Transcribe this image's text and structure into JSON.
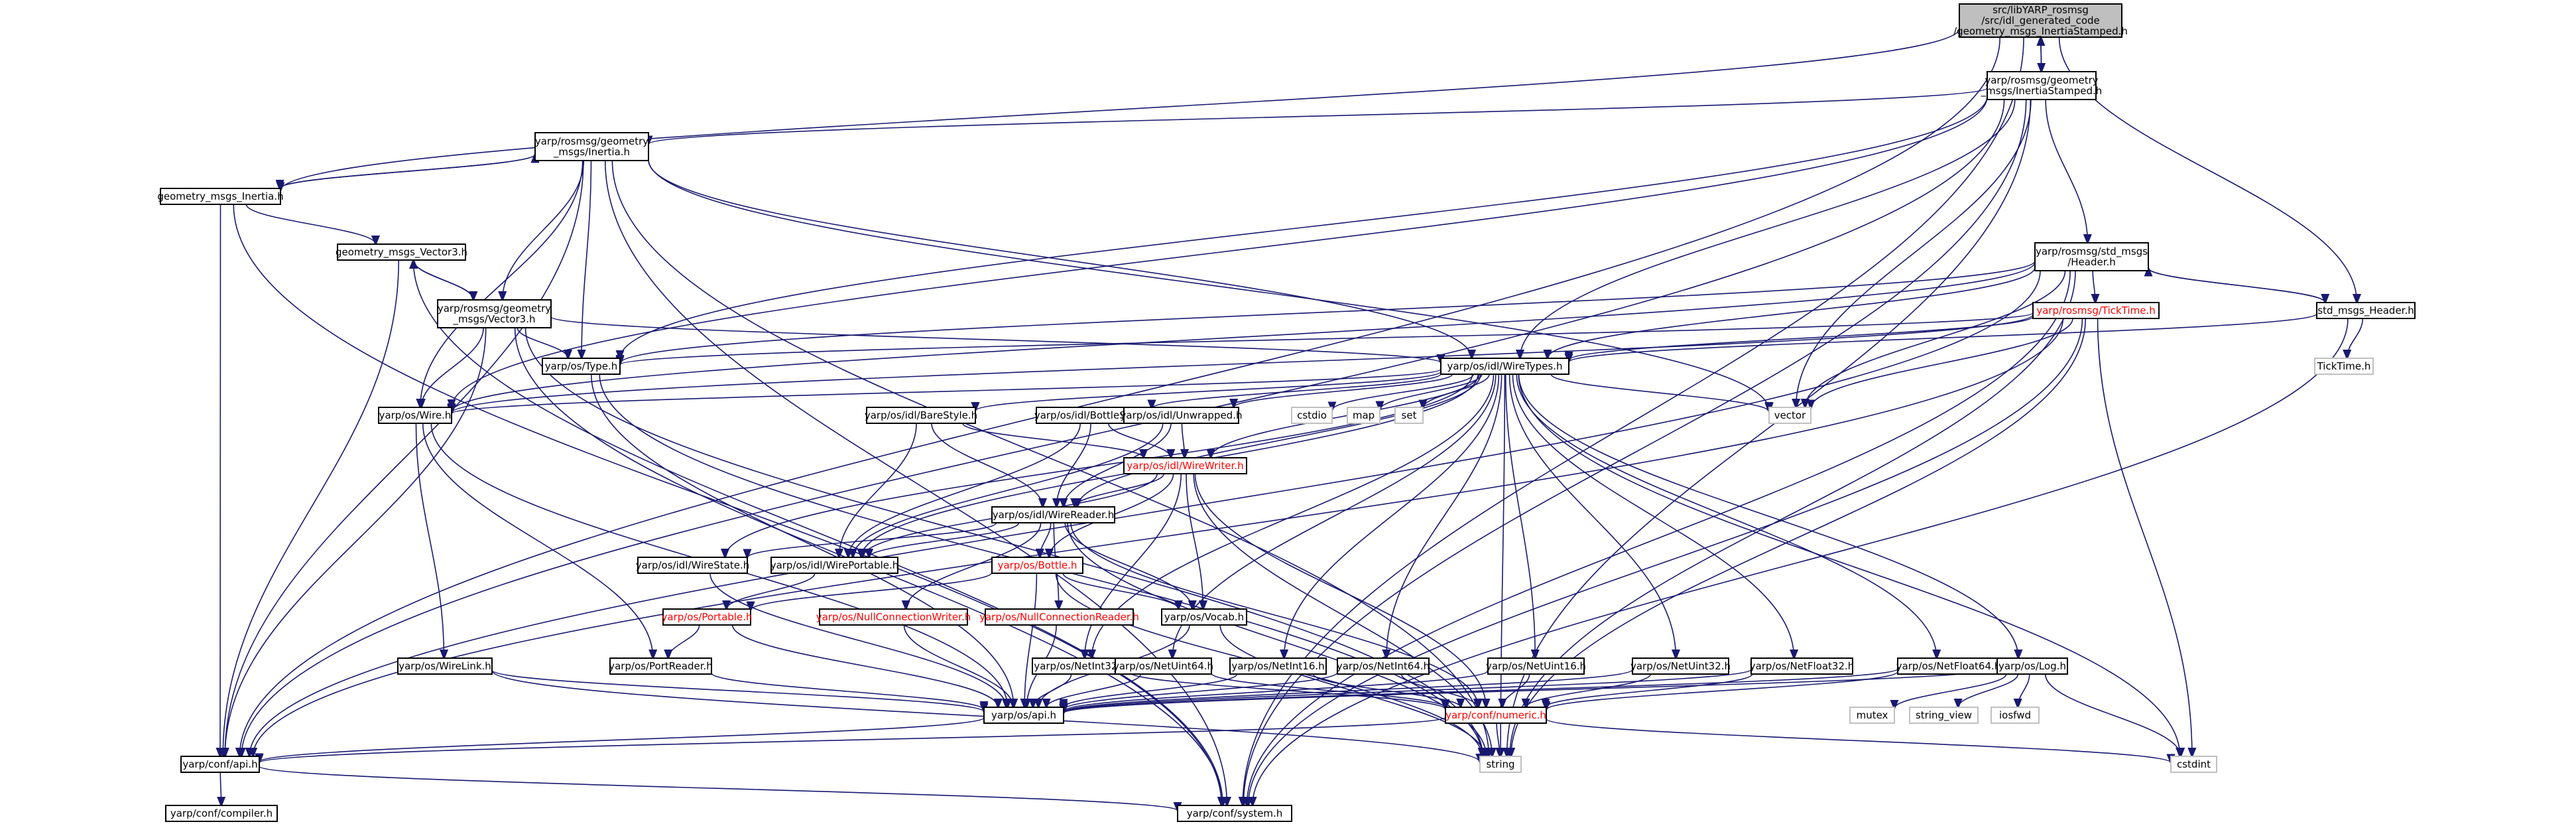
{
  "nodes": {
    "root": [
      "src/libYARP_rosmsg",
      "/src/idl_generated_code",
      "/geometry_msgs_InertiaStamped.h"
    ],
    "inertia_stamped": [
      "yarp/rosmsg/geometry",
      "_msgs/InertiaStamped.h"
    ],
    "inertia": [
      "yarp/rosmsg/geometry",
      "_msgs/Inertia.h"
    ],
    "gm_inertia": [
      "geometry_msgs_Inertia.h"
    ],
    "gm_vector3": [
      "geometry_msgs_Vector3.h"
    ],
    "vector3": [
      "yarp/rosmsg/geometry",
      "_msgs/Vector3.h"
    ],
    "std_header": [
      "yarp/rosmsg/std_msgs",
      "/Header.h"
    ],
    "std_msgs_header": [
      "std_msgs_Header.h"
    ],
    "ticktime": [
      "yarp/rosmsg/TickTime.h"
    ],
    "ticktime_h": [
      "TickTime.h"
    ],
    "type": [
      "yarp/os/Type.h"
    ],
    "wiretypes": [
      "yarp/os/idl/WireTypes.h"
    ],
    "wire": [
      "yarp/os/Wire.h"
    ],
    "barestyle": [
      "yarp/os/idl/BareStyle.h"
    ],
    "bottlestyle": [
      "yarp/os/idl/BottleStyle.h"
    ],
    "unwrapped": [
      "yarp/os/idl/Unwrapped.h"
    ],
    "cstdio": [
      "cstdio"
    ],
    "map": [
      "map"
    ],
    "set": [
      "set"
    ],
    "vector": [
      "vector"
    ],
    "wirewriter": [
      "yarp/os/idl/WireWriter.h"
    ],
    "wirereader": [
      "yarp/os/idl/WireReader.h"
    ],
    "wirestate": [
      "yarp/os/idl/WireState.h"
    ],
    "wireportable": [
      "yarp/os/idl/WirePortable.h"
    ],
    "bottle": [
      "yarp/os/Bottle.h"
    ],
    "portable": [
      "yarp/os/Portable.h"
    ],
    "nullwriter": [
      "yarp/os/NullConnectionWriter.h"
    ],
    "nullreader": [
      "yarp/os/NullConnectionReader.h"
    ],
    "vocab": [
      "yarp/os/Vocab.h"
    ],
    "portreader": [
      "yarp/os/PortReader.h"
    ],
    "wirelink": [
      "yarp/os/WireLink.h"
    ],
    "netint32": [
      "yarp/os/NetInt32.h"
    ],
    "netuint64": [
      "yarp/os/NetUint64.h"
    ],
    "netint16": [
      "yarp/os/NetInt16.h"
    ],
    "netint64": [
      "yarp/os/NetInt64.h"
    ],
    "netuint16": [
      "yarp/os/NetUint16.h"
    ],
    "netuint32": [
      "yarp/os/NetUint32.h"
    ],
    "netfloat32": [
      "yarp/os/NetFloat32.h"
    ],
    "netfloat64": [
      "yarp/os/NetFloat64.h"
    ],
    "log": [
      "yarp/os/Log.h"
    ],
    "mutex": [
      "mutex"
    ],
    "string_view": [
      "string_view"
    ],
    "iosfwd": [
      "iosfwd"
    ],
    "api": [
      "yarp/os/api.h"
    ],
    "numeric": [
      "yarp/conf/numeric.h"
    ],
    "string": [
      "string"
    ],
    "cstdint": [
      "cstdint"
    ],
    "conf_api": [
      "yarp/conf/api.h"
    ],
    "compiler": [
      "yarp/conf/compiler.h"
    ],
    "system": [
      "yarp/conf/system.h"
    ]
  },
  "colors": {
    "edge": "#191970",
    "root_fill": "#bfbfbf",
    "red_label": "#ff0000",
    "external_border": "#c0c0c0"
  }
}
